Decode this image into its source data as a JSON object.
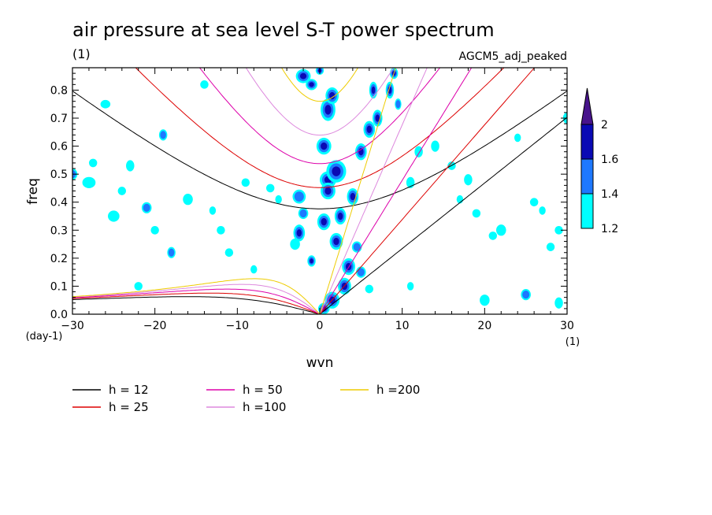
{
  "chart_data": {
    "type": "heatmap",
    "title": "air pressure at sea level S-T power spectrum",
    "subtitle": "(1)",
    "model_label": "AGCM5_adj_peaked",
    "xlabel": "wvn",
    "ylabel": "freq",
    "x_unit": "(1)",
    "y_unit": "(day-1)",
    "xlim": [
      -30,
      30
    ],
    "ylim": [
      0,
      0.88
    ],
    "x_ticks": [
      "-30",
      "-20",
      "-10",
      "0",
      "10",
      "20",
      "30"
    ],
    "y_ticks": [
      "0.0",
      "0.1",
      "0.2",
      "0.3",
      "0.4",
      "0.5",
      "0.6",
      "0.7",
      "0.8"
    ],
    "colorbar": {
      "levels": [
        "1.2",
        "1.4",
        "1.6",
        "2"
      ],
      "colors": [
        "#00ffff",
        "#1e78ff",
        "#0a0ab4",
        "#48148c"
      ]
    },
    "dispersion_curves": [
      {
        "label": "h = 12",
        "color": "#000000"
      },
      {
        "label": "h = 25",
        "color": "#dd0000"
      },
      {
        "label": "h = 50",
        "color": "#dd00aa"
      },
      {
        "label": "h =100",
        "color": "#dd88dd"
      },
      {
        "label": "h =200",
        "color": "#eecc00"
      }
    ]
  }
}
